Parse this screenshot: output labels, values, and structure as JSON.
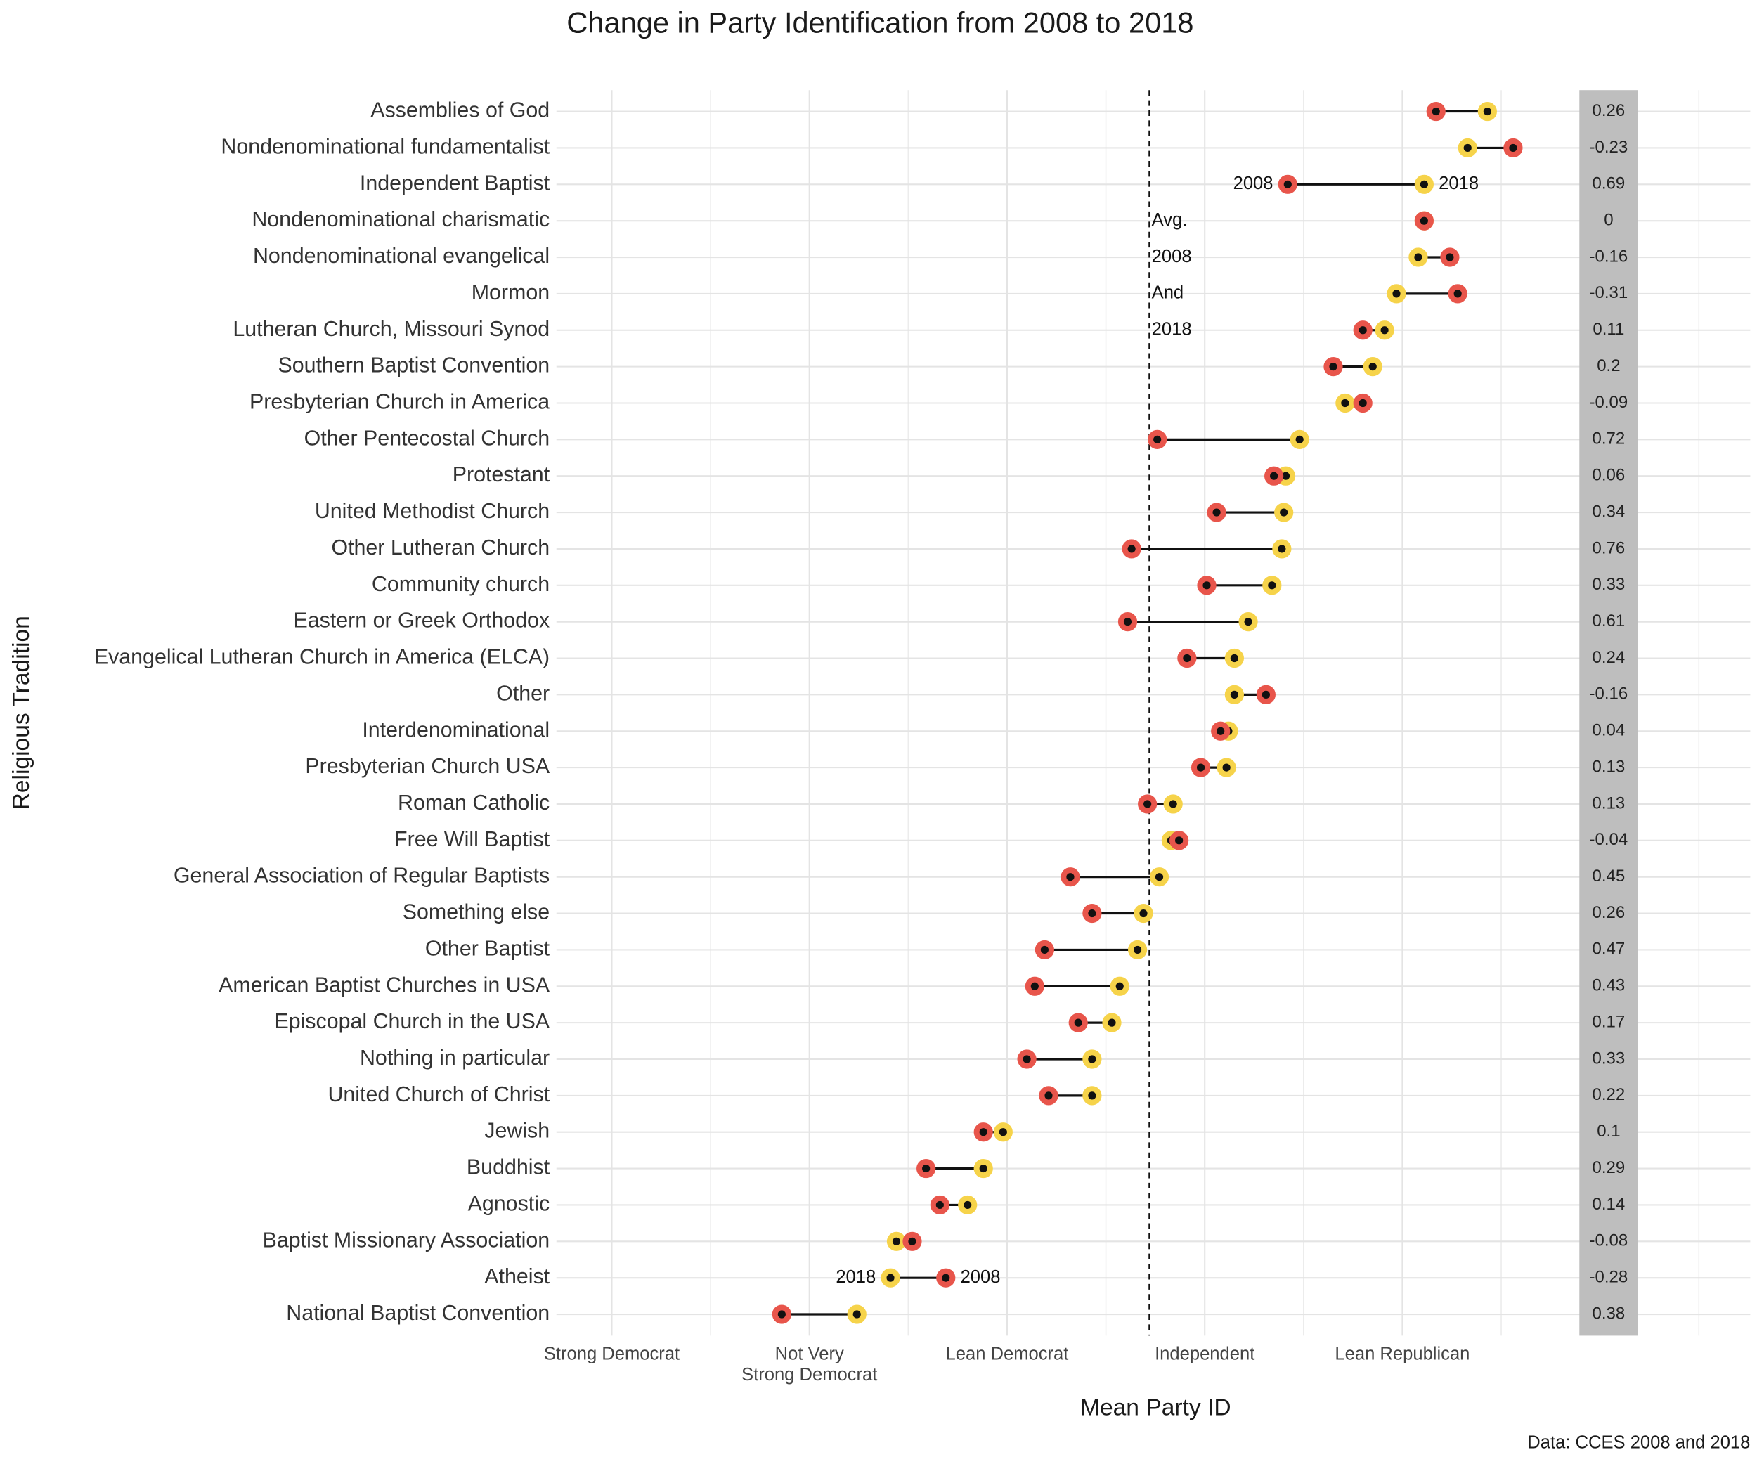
{
  "chart_data": {
    "type": "dumbbell",
    "title": "Change in Party Identification from 2008 to 2018",
    "x_label": "Mean Party ID",
    "y_label": "Religious Tradition",
    "caption": "Data: CCES 2008 and 2018",
    "categories": [
      "Assemblies of God",
      "Nondenominational fundamentalist",
      "Independent Baptist",
      "Nondenominational charismatic",
      "Nondenominational evangelical",
      "Mormon",
      "Lutheran Church, Missouri Synod",
      "Southern Baptist Convention",
      "Presbyterian Church in America",
      "Other Pentecostal Church",
      "Protestant",
      "United Methodist Church",
      "Other Lutheran Church",
      "Community church",
      "Eastern or Greek Orthodox",
      "Evangelical Lutheran Church in America (ELCA)",
      "Other",
      "Interdenominational",
      "Presbyterian Church USA",
      "Roman Catholic",
      "Free Will Baptist",
      "General Association of Regular Baptists",
      "Something else",
      "Other Baptist",
      "American Baptist Churches in USA",
      "Episcopal Church in the USA",
      "Nothing in particular",
      "United Church of Christ",
      "Jewish",
      "Buddhist",
      "Agnostic",
      "Baptist Missionary Association",
      "Atheist",
      "National Baptist Convention"
    ],
    "series": [
      {
        "name": "2008",
        "color": "#e8554b",
        "values": [
          5.17,
          5.56,
          4.42,
          5.11,
          5.24,
          5.28,
          4.8,
          4.65,
          4.8,
          3.76,
          4.35,
          4.06,
          3.63,
          4.01,
          3.61,
          3.91,
          4.31,
          4.08,
          3.98,
          3.71,
          3.87,
          3.32,
          3.43,
          3.19,
          3.14,
          3.36,
          3.1,
          3.21,
          2.88,
          2.59,
          2.66,
          2.52,
          2.69,
          1.86
        ]
      },
      {
        "name": "2018",
        "color": "#f6d34a",
        "values": [
          5.43,
          5.33,
          5.11,
          5.11,
          5.08,
          4.97,
          4.91,
          4.85,
          4.71,
          4.48,
          4.41,
          4.4,
          4.39,
          4.34,
          4.22,
          4.15,
          4.15,
          4.12,
          4.11,
          3.84,
          3.83,
          3.77,
          3.69,
          3.66,
          3.57,
          3.53,
          3.43,
          3.43,
          2.98,
          2.88,
          2.8,
          2.44,
          2.41,
          2.24
        ]
      }
    ],
    "differences": [
      0.26,
      -0.23,
      0.69,
      0,
      -0.16,
      -0.31,
      0.11,
      0.2,
      -0.09,
      0.72,
      0.06,
      0.34,
      0.76,
      0.33,
      0.61,
      0.24,
      -0.16,
      0.04,
      0.13,
      0.13,
      -0.04,
      0.45,
      0.26,
      0.47,
      0.43,
      0.17,
      0.33,
      0.22,
      0.1,
      0.29,
      0.14,
      -0.08,
      -0.28,
      0.38
    ],
    "average_line": 3.72,
    "average_label": [
      "Avg.",
      "2008",
      "And",
      "2018"
    ],
    "xlim": [
      0.72,
      6.76
    ],
    "xticks": [
      {
        "value": 1,
        "label": "Strong Democrat"
      },
      {
        "value": 2,
        "label": "Not Very\nStrong Democrat"
      },
      {
        "value": 3,
        "label": "Lean Democrat"
      },
      {
        "value": 4,
        "label": "Independent"
      },
      {
        "value": 5,
        "label": "Lean Republican"
      }
    ],
    "minor_grid": [
      1.5,
      2.5,
      3.5,
      4.5,
      5.5,
      6,
      6.5
    ],
    "grid": true
  }
}
